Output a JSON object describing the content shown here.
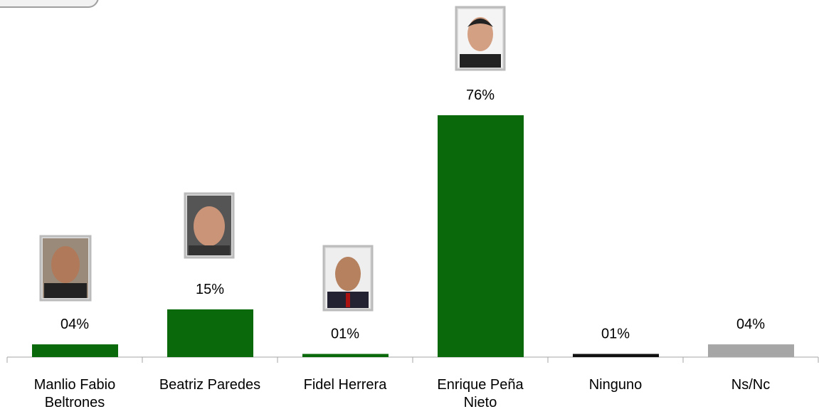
{
  "chart_data": {
    "type": "bar",
    "categories": [
      "Manlio Fabio Beltrones",
      "Beatriz Paredes",
      "Fidel Herrera",
      "Enrique Peña Nieto",
      "Ninguno",
      "Ns/Nc"
    ],
    "values": [
      4,
      15,
      1,
      76,
      1,
      4
    ],
    "value_labels": [
      "04%",
      "15%",
      "01%",
      "76%",
      "01%",
      "04%"
    ],
    "colors": [
      "#0a690a",
      "#0a690a",
      "#0a690a",
      "#0a690a",
      "#111111",
      "#a6a6a6"
    ]
  }
}
